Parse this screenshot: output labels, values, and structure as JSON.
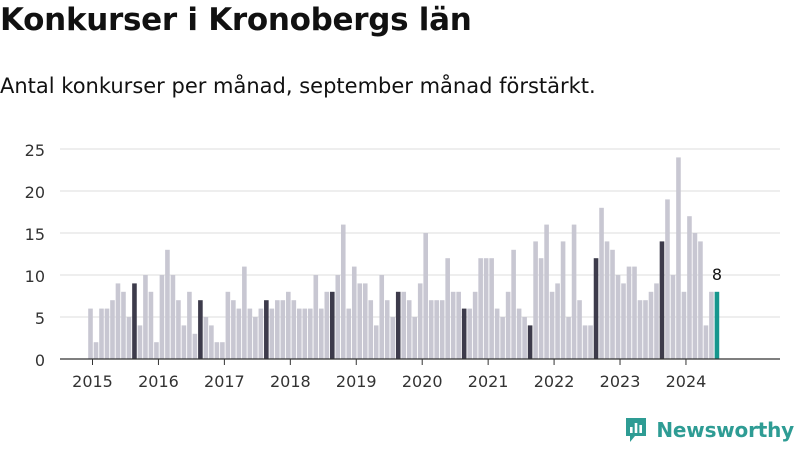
{
  "title": "Konkurser i Kronobergs län",
  "subtitle": "Antal konkurser per månad, september månad förstärkt.",
  "brand": {
    "name": "Newsworthy",
    "icon": "bar-chart-logo-icon",
    "color": "#2e9c94"
  },
  "colors": {
    "normal": "#c8c7d2",
    "september": "#3d3b4b",
    "latest": "#16968d",
    "grid": "#dddddd"
  },
  "chart_data": {
    "type": "bar",
    "title": "Konkurser i Kronobergs län",
    "subtitle": "Antal konkurser per månad, september månad förstärkt.",
    "xlabel": "",
    "ylabel": "",
    "ylim": [
      0,
      25
    ],
    "yticks": [
      "0",
      "5",
      "10",
      "15",
      "20",
      "25"
    ],
    "year_labels": [
      "2015",
      "2016",
      "2017",
      "2018",
      "2019",
      "2020",
      "2021",
      "2022",
      "2023",
      "2024"
    ],
    "start": "2015-01",
    "highlight_month": 9,
    "grid": "horizontal",
    "latest_label": "8",
    "values": [
      6,
      2,
      6,
      6,
      7,
      9,
      8,
      5,
      9,
      4,
      10,
      8,
      2,
      10,
      13,
      10,
      7,
      4,
      8,
      3,
      7,
      5,
      4,
      2,
      2,
      8,
      7,
      6,
      11,
      6,
      5,
      6,
      7,
      6,
      7,
      7,
      8,
      7,
      6,
      6,
      6,
      10,
      6,
      8,
      8,
      10,
      16,
      6,
      11,
      9,
      9,
      7,
      4,
      10,
      7,
      5,
      8,
      8,
      7,
      5,
      9,
      15,
      7,
      7,
      7,
      12,
      8,
      8,
      6,
      6,
      8,
      12,
      12,
      12,
      6,
      5,
      8,
      13,
      6,
      5,
      4,
      14,
      12,
      16,
      8,
      9,
      14,
      5,
      16,
      7,
      4,
      4,
      12,
      18,
      14,
      13,
      10,
      9,
      11,
      11,
      7,
      7,
      8,
      9,
      14,
      19,
      10,
      24,
      8,
      17,
      15,
      14,
      4,
      8,
      8
    ]
  }
}
